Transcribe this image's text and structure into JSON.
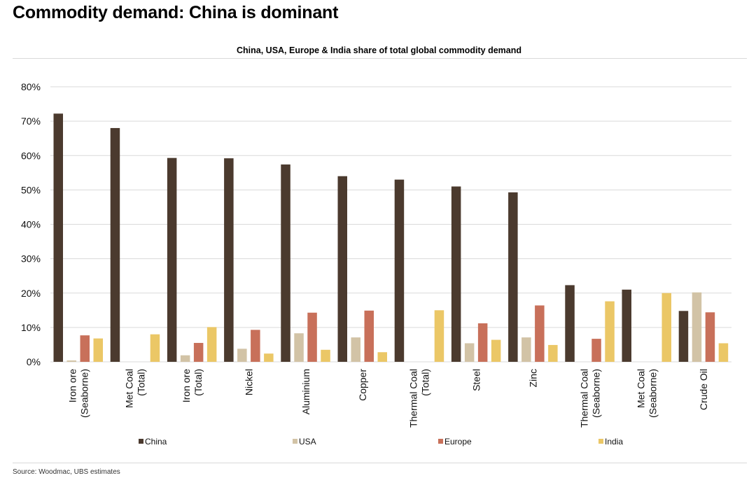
{
  "page": {
    "headline": "Commodity demand: China is dominant",
    "source": "Source: Woodmac, UBS estimates"
  },
  "colors": {
    "China": "#4b3a2e",
    "USA": "#d2c3a6",
    "Europe": "#c8705a",
    "India": "#ebc766",
    "grid": "#d9d9d9"
  },
  "chart_data": {
    "type": "bar",
    "title": "China, USA, Europe & India share of total global commodity demand",
    "xlabel": "",
    "ylabel": "",
    "ylim": [
      0,
      0.8
    ],
    "yticks": [
      {
        "value": 0.0,
        "label": "0%"
      },
      {
        "value": 0.1,
        "label": "10%"
      },
      {
        "value": 0.2,
        "label": "20%"
      },
      {
        "value": 0.3,
        "label": "30%"
      },
      {
        "value": 0.4,
        "label": "40%"
      },
      {
        "value": 0.5,
        "label": "50%"
      },
      {
        "value": 0.6,
        "label": "60%"
      },
      {
        "value": 0.7,
        "label": "70%"
      },
      {
        "value": 0.8,
        "label": "80%"
      }
    ],
    "grid": true,
    "legend_position": "bottom",
    "categories": [
      [
        "Iron ore",
        "(Seaborne)"
      ],
      [
        "Met Coal",
        "(Total)"
      ],
      [
        "Iron ore",
        "(Total)"
      ],
      [
        "Nickel"
      ],
      [
        "Aluminium"
      ],
      [
        "Copper"
      ],
      [
        "Thermal Coal",
        "(Total)"
      ],
      [
        "Steel"
      ],
      [
        "Zinc"
      ],
      [
        "Thermal Coal",
        "(Seaborne)"
      ],
      [
        "Met Coal",
        "(Seaborne)"
      ],
      [
        "Crude Oil"
      ]
    ],
    "series": [
      {
        "name": "China",
        "values": [
          0.722,
          0.68,
          0.593,
          0.592,
          0.574,
          0.54,
          0.53,
          0.51,
          0.493,
          0.223,
          0.21,
          0.148
        ]
      },
      {
        "name": "USA",
        "values": [
          0.004,
          0.0,
          0.019,
          0.038,
          0.083,
          0.071,
          0.0,
          0.054,
          0.071,
          0.0,
          0.0,
          0.202
        ]
      },
      {
        "name": "Europe",
        "values": [
          0.077,
          0.0,
          0.055,
          0.093,
          0.143,
          0.149,
          0.0,
          0.112,
          0.164,
          0.067,
          0.0,
          0.144
        ]
      },
      {
        "name": "India",
        "values": [
          0.068,
          0.08,
          0.101,
          0.024,
          0.035,
          0.028,
          0.15,
          0.064,
          0.049,
          0.176,
          0.2,
          0.054
        ]
      }
    ]
  }
}
